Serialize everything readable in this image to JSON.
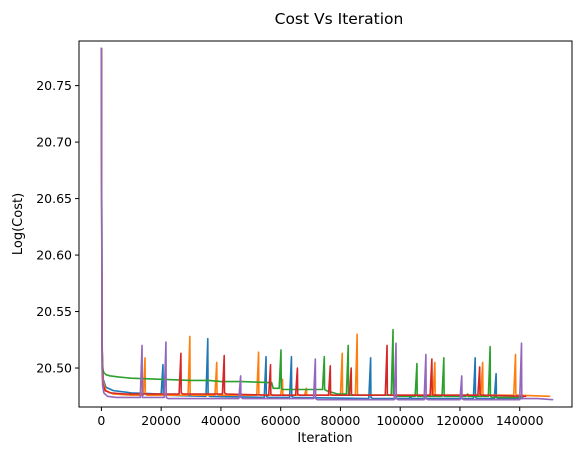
{
  "chart_data": {
    "type": "line",
    "title": "Cost Vs Iteration",
    "xlabel": "Iteration",
    "ylabel": "Log(Cost)",
    "xlim": [
      -7500,
      157500
    ],
    "ylim": [
      20.4655,
      20.7895
    ],
    "xticks": [
      0,
      20000,
      40000,
      60000,
      80000,
      100000,
      120000,
      140000
    ],
    "xtick_labels": [
      "0",
      "20000",
      "40000",
      "60000",
      "80000",
      "100000",
      "120000",
      "140000"
    ],
    "yticks": [
      20.5,
      20.55,
      20.6,
      20.65,
      20.7,
      20.75
    ],
    "ytick_labels": [
      "20.50",
      "20.55",
      "20.60",
      "20.65",
      "20.70",
      "20.75"
    ],
    "grid": false,
    "legend": "none",
    "series": [
      {
        "color": "#1f77b4",
        "x": [
          0,
          200,
          600,
          1500,
          4000,
          10000,
          20000,
          20600,
          20700,
          21300,
          35000,
          35600,
          35700,
          36300,
          54500,
          55100,
          55200,
          55800,
          63000,
          63600,
          63700,
          64300,
          89500,
          90100,
          90200,
          90800,
          103000,
          103600,
          103700,
          104300,
          124500,
          125100,
          125200,
          125800,
          131500,
          132100,
          132200,
          132800,
          141000
        ],
        "y": [
          20.783,
          20.52,
          20.49,
          20.483,
          20.48,
          20.478,
          20.477,
          20.503,
          20.478,
          20.476,
          20.475,
          20.526,
          20.476,
          20.475,
          20.474,
          20.51,
          20.475,
          20.474,
          20.474,
          20.51,
          20.475,
          20.474,
          20.473,
          20.509,
          20.474,
          20.473,
          20.473,
          20.475,
          20.473,
          20.473,
          20.473,
          20.509,
          20.474,
          20.473,
          20.473,
          20.495,
          20.474,
          20.473,
          20.473
        ]
      },
      {
        "color": "#ff7f0e",
        "x": [
          0,
          200,
          600,
          1500,
          4000,
          10000,
          14000,
          14600,
          14700,
          15300,
          29000,
          29600,
          29700,
          30300,
          38000,
          38600,
          38700,
          39300,
          52000,
          52600,
          52700,
          53300,
          60000,
          60600,
          60700,
          61300,
          68000,
          68600,
          68700,
          69300,
          80000,
          80600,
          80700,
          81300,
          85000,
          85600,
          85700,
          86300,
          111000,
          111600,
          111700,
          112300,
          127000,
          127600,
          127700,
          128300,
          138000,
          138600,
          138700,
          139300,
          150000
        ],
        "y": [
          20.783,
          20.52,
          20.488,
          20.48,
          20.477,
          20.476,
          20.476,
          20.509,
          20.477,
          20.476,
          20.476,
          20.528,
          20.477,
          20.476,
          20.476,
          20.505,
          20.477,
          20.476,
          20.476,
          20.514,
          20.477,
          20.476,
          20.476,
          20.49,
          20.477,
          20.476,
          20.476,
          20.482,
          20.476,
          20.476,
          20.476,
          20.513,
          20.477,
          20.476,
          20.476,
          20.53,
          20.477,
          20.476,
          20.476,
          20.505,
          20.477,
          20.476,
          20.476,
          20.505,
          20.477,
          20.476,
          20.476,
          20.512,
          20.477,
          20.476,
          20.475
        ]
      },
      {
        "color": "#2ca02c",
        "x": [
          0,
          200,
          400,
          800,
          1600,
          3000,
          6000,
          10000,
          20000,
          30000,
          36000,
          40000,
          47000,
          57000,
          57500,
          59500,
          60100,
          60200,
          60800,
          70000,
          74000,
          74600,
          74700,
          75300,
          79000,
          82000,
          82600,
          82700,
          83300,
          95000,
          97000,
          97600,
          97700,
          98300,
          100000,
          105000,
          105600,
          105700,
          106300,
          114000,
          114600,
          114700,
          115300,
          122000,
          122600,
          122700,
          123300,
          129500,
          130100,
          130200,
          130800,
          141000
        ],
        "y": [
          20.783,
          20.53,
          20.5,
          20.496,
          20.494,
          20.493,
          20.492,
          20.491,
          20.49,
          20.489,
          20.489,
          20.488,
          20.488,
          20.487,
          20.482,
          20.482,
          20.516,
          20.482,
          20.481,
          20.481,
          20.481,
          20.51,
          20.481,
          20.48,
          20.477,
          20.477,
          20.52,
          20.477,
          20.476,
          20.476,
          20.476,
          20.534,
          20.477,
          20.475,
          20.475,
          20.475,
          20.504,
          20.475,
          20.475,
          20.475,
          20.509,
          20.475,
          20.475,
          20.475,
          20.477,
          20.475,
          20.475,
          20.475,
          20.519,
          20.475,
          20.474,
          20.474
        ]
      },
      {
        "color": "#d62728",
        "x": [
          0,
          200,
          500,
          1200,
          3000,
          8000,
          15000,
          26000,
          26600,
          26700,
          27300,
          40500,
          41100,
          41200,
          41800,
          56000,
          56600,
          56700,
          57300,
          65000,
          65600,
          65700,
          66300,
          76000,
          76600,
          76700,
          77300,
          83000,
          83600,
          83700,
          84300,
          95000,
          95600,
          95700,
          96300,
          110000,
          110600,
          110700,
          111300,
          126000,
          126600,
          126700,
          127300,
          142000
        ],
        "y": [
          20.783,
          20.51,
          20.486,
          20.48,
          20.478,
          20.477,
          20.477,
          20.477,
          20.513,
          20.478,
          20.477,
          20.477,
          20.511,
          20.478,
          20.477,
          20.476,
          20.503,
          20.477,
          20.476,
          20.476,
          20.5,
          20.477,
          20.476,
          20.476,
          20.502,
          20.477,
          20.476,
          20.476,
          20.5,
          20.477,
          20.476,
          20.476,
          20.52,
          20.477,
          20.476,
          20.476,
          20.508,
          20.477,
          20.476,
          20.476,
          20.501,
          20.477,
          20.476,
          20.475
        ]
      },
      {
        "color": "#9467bd",
        "x": [
          0,
          200,
          400,
          800,
          2000,
          5000,
          13000,
          13600,
          13700,
          14300,
          21000,
          21600,
          21700,
          22300,
          46000,
          46600,
          46700,
          47300,
          60000,
          70000,
          71000,
          71600,
          71700,
          72300,
          78000,
          98000,
          98600,
          98700,
          99300,
          108000,
          108600,
          108700,
          109300,
          120000,
          120600,
          120700,
          121300,
          140000,
          140600,
          140700,
          141300,
          146000,
          151000
        ],
        "y": [
          20.783,
          20.5,
          20.485,
          20.478,
          20.475,
          20.474,
          20.474,
          20.52,
          20.474,
          20.474,
          20.474,
          20.523,
          20.474,
          20.473,
          20.473,
          20.493,
          20.474,
          20.473,
          20.473,
          20.473,
          20.473,
          20.508,
          20.473,
          20.472,
          20.472,
          20.472,
          20.522,
          20.473,
          20.472,
          20.472,
          20.512,
          20.473,
          20.472,
          20.472,
          20.493,
          20.473,
          20.472,
          20.472,
          20.522,
          20.473,
          20.473,
          20.473,
          20.472
        ]
      }
    ]
  }
}
